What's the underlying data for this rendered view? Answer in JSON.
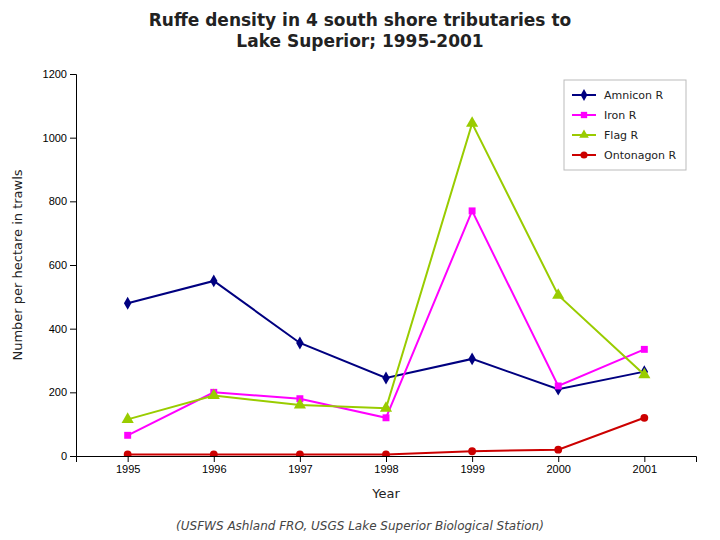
{
  "chart_data": {
    "type": "line",
    "title": "Ruffe density in 4 south shore tributaries to\nLake Superior; 1995-2001",
    "subtitle": "(USFWS Ashland FRO, USGS Lake Superior Biological Station)",
    "x_label": "Year",
    "y_label": "Number per hectare in trawls",
    "x": [
      1995,
      1996,
      1997,
      1998,
      1999,
      2000,
      2001
    ],
    "series": [
      {
        "name": "Amnicon R",
        "color": "#000080",
        "marker": "diamond",
        "values": [
          480,
          550,
          355,
          245,
          305,
          210,
          265
        ]
      },
      {
        "name": "Iron R",
        "color": "#ff00ff",
        "marker": "square",
        "values": [
          65,
          200,
          180,
          120,
          770,
          220,
          335
        ]
      },
      {
        "name": "Flag R",
        "color": "#99cc00",
        "marker": "triangle",
        "values": [
          115,
          190,
          160,
          150,
          1045,
          505,
          255
        ]
      },
      {
        "name": "Ontonagon R",
        "color": "#cc0000",
        "marker": "circle",
        "values": [
          5,
          5,
          5,
          5,
          15,
          20,
          120
        ]
      }
    ],
    "xlim": [
      1994.4,
      2001.6
    ],
    "xticks": [
      1995,
      1996,
      1997,
      1998,
      1999,
      2000,
      2001
    ],
    "ylim": [
      0,
      1200
    ],
    "yticks": [
      0,
      200,
      400,
      600,
      800,
      1000,
      1200
    ],
    "grid": false,
    "legend": "upper right"
  }
}
